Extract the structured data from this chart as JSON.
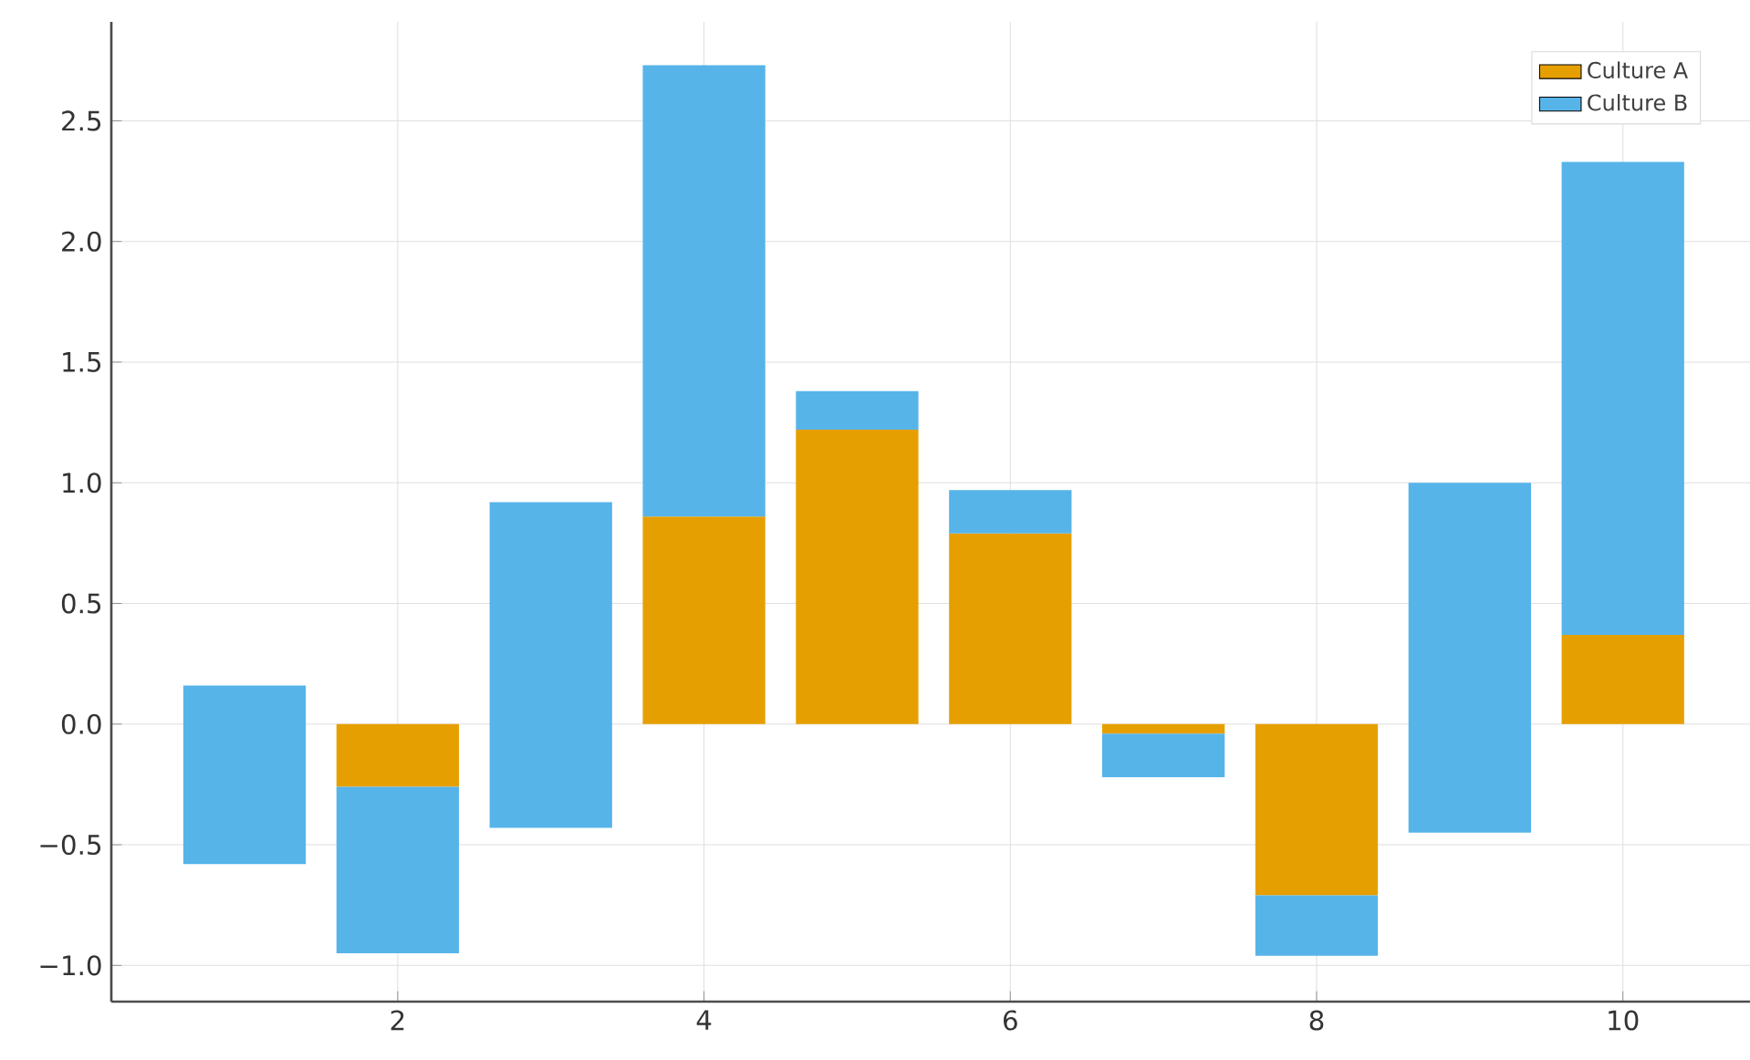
{
  "chart_data": {
    "type": "bar",
    "x": [
      1,
      2,
      3,
      4,
      5,
      6,
      7,
      8,
      9,
      10
    ],
    "series": [
      {
        "name": "Culture A",
        "color": "#e69f00",
        "values": [
          null,
          -0.26,
          null,
          0.86,
          1.22,
          0.79,
          -0.04,
          -0.71,
          null,
          0.37
        ]
      },
      {
        "name": "Culture B",
        "color": "#56b4e9",
        "base": [
          -0.58,
          null,
          -0.43,
          null,
          null,
          null,
          null,
          null,
          -0.45,
          null
        ],
        "values": [
          0.74,
          -0.69,
          1.35,
          1.87,
          0.16,
          0.18,
          -0.18,
          -0.25,
          1.45,
          1.96
        ]
      }
    ],
    "stacked": true,
    "xlim": [
      0.13,
      10.83
    ],
    "xticks": [
      2,
      4,
      6,
      8,
      10
    ],
    "ylim": [
      -1.15,
      2.91
    ],
    "yticks": [
      {
        "value": -1.0,
        "label": "−1.0"
      },
      {
        "value": -0.5,
        "label": "−0.5"
      },
      {
        "value": 0.0,
        "label": "0.0"
      },
      {
        "value": 0.5,
        "label": "0.5"
      },
      {
        "value": 1.0,
        "label": "1.0"
      },
      {
        "value": 1.5,
        "label": "1.5"
      },
      {
        "value": 2.0,
        "label": "2.0"
      },
      2.5
    ],
    "grid": true,
    "legend": "top right"
  }
}
